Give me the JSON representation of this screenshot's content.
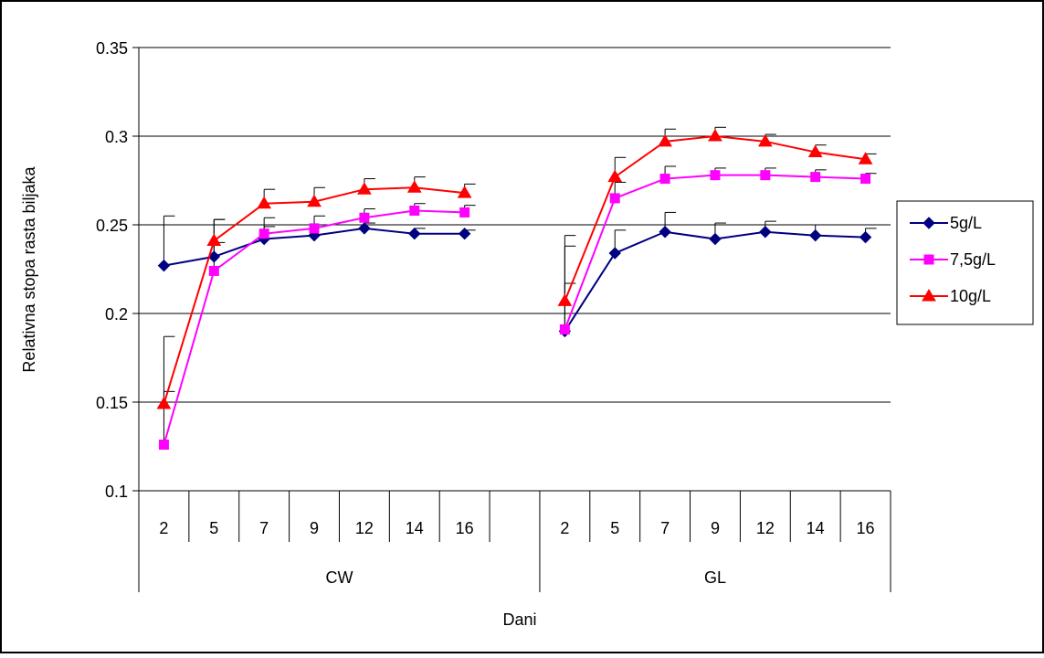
{
  "chart_data": {
    "type": "line",
    "title": "",
    "xlabel": "Dani",
    "ylabel": "Relativna stopa rasta biljaka",
    "ylim": [
      0.1,
      0.35
    ],
    "yticks": [
      0.1,
      0.15,
      0.2,
      0.25,
      0.3,
      0.35
    ],
    "ytick_labels": [
      "0.1",
      "0.15",
      "0.2",
      "0.25",
      "0.3",
      "0.35"
    ],
    "grid": true,
    "legend_position": "right",
    "groups": [
      {
        "label": "CW",
        "categories": [
          "2",
          "5",
          "7",
          "9",
          "12",
          "14",
          "16",
          ""
        ]
      },
      {
        "label": "GL",
        "categories": [
          "2",
          "5",
          "7",
          "9",
          "12",
          "14",
          "16"
        ]
      }
    ],
    "series": [
      {
        "name": "5g/L",
        "color": "#000080",
        "marker": "diamond",
        "segments": [
          {
            "group": 0,
            "values": [
              0.227,
              0.232,
              0.242,
              0.244,
              0.248,
              0.245,
              0.245
            ],
            "errors": [
              0.028,
              0.021,
              0.007,
              0.005,
              0.003,
              0.003,
              0.002
            ]
          },
          {
            "group": 1,
            "values": [
              0.19,
              0.234,
              0.246,
              0.242,
              0.246,
              0.244,
              0.243
            ],
            "errors": [
              0.048,
              0.013,
              0.011,
              0.009,
              0.006,
              0.006,
              0.005
            ]
          }
        ]
      },
      {
        "name": "7,5g/L",
        "color": "#ff00ff",
        "marker": "square",
        "segments": [
          {
            "group": 0,
            "values": [
              0.126,
              0.224,
              0.245,
              0.248,
              0.254,
              0.258,
              0.257
            ],
            "errors": [
              0.03,
              0.016,
              0.009,
              0.007,
              0.005,
              0.004,
              0.004
            ]
          },
          {
            "group": 1,
            "values": [
              0.191,
              0.265,
              0.276,
              0.278,
              0.278,
              0.277,
              0.276
            ],
            "errors": [
              0.026,
              0.009,
              0.007,
              0.004,
              0.004,
              0.004,
              0.003
            ]
          }
        ]
      },
      {
        "name": "10g/L",
        "color": "#ff0000",
        "marker": "triangle",
        "segments": [
          {
            "group": 0,
            "values": [
              0.149,
              0.241,
              0.262,
              0.263,
              0.27,
              0.271,
              0.268
            ],
            "errors": [
              0.038,
              0.012,
              0.008,
              0.008,
              0.006,
              0.006,
              0.005
            ]
          },
          {
            "group": 1,
            "values": [
              0.207,
              0.277,
              0.297,
              0.3,
              0.297,
              0.291,
              0.287
            ],
            "errors": [
              0.037,
              0.011,
              0.007,
              0.005,
              0.004,
              0.004,
              0.003
            ]
          }
        ]
      }
    ]
  }
}
